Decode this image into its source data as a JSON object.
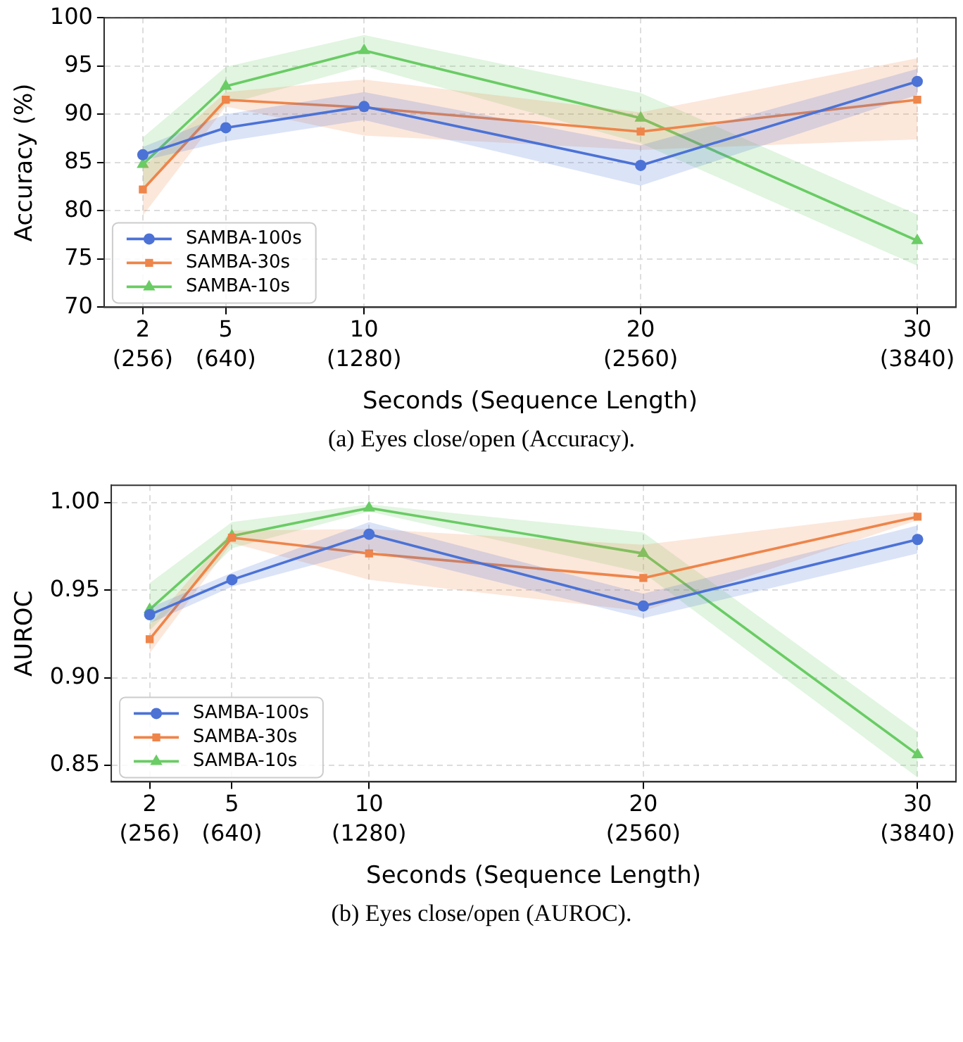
{
  "chart_data": [
    {
      "type": "line",
      "title": "(a) Eyes close/open (Accuracy).",
      "xlabel": "Seconds (Sequence Length)",
      "ylabel": "Accuracy (%)",
      "x": [
        2,
        5,
        10,
        20,
        30
      ],
      "xlim": [
        0.6,
        31.4
      ],
      "xticks": [
        2,
        5,
        10,
        20,
        30
      ],
      "x2lim": [
        76.8,
        4019.2
      ],
      "x2ticks": [
        {
          "value": 256,
          "label": "(256)"
        },
        {
          "value": 640,
          "label": "(640)"
        },
        {
          "value": 1280,
          "label": "(1280)"
        },
        {
          "value": 2560,
          "label": "(2560)"
        },
        {
          "value": 3840,
          "label": "(3840)"
        }
      ],
      "ylim": [
        70,
        100
      ],
      "yticks": [
        70,
        75,
        80,
        85,
        90,
        95,
        100
      ],
      "grid": true,
      "legend": "bottom left",
      "series": [
        {
          "name": "SAMBA-100s",
          "color": "#4c72d6",
          "marker": "circle",
          "values": [
            85.8,
            88.6,
            90.8,
            84.7,
            93.4
          ],
          "lower": [
            85.2,
            87.2,
            89.4,
            82.6,
            92.0
          ],
          "upper": [
            86.6,
            90.0,
            92.3,
            86.8,
            94.7
          ]
        },
        {
          "name": "SAMBA-30s",
          "color": "#ee854a",
          "marker": "square",
          "values": [
            82.2,
            91.5,
            90.7,
            88.2,
            91.5
          ],
          "lower": [
            79.5,
            90.8,
            87.8,
            86.3,
            87.4
          ],
          "upper": [
            84.5,
            92.3,
            93.6,
            90.2,
            95.8
          ]
        },
        {
          "name": "SAMBA-10s",
          "color": "#6acc64",
          "marker": "triangle",
          "values": [
            84.8,
            92.9,
            96.6,
            89.6,
            76.9
          ],
          "lower": [
            82.3,
            91.0,
            95.0,
            87.0,
            74.3
          ],
          "upper": [
            87.6,
            94.9,
            98.2,
            92.2,
            79.6
          ]
        }
      ]
    },
    {
      "type": "line",
      "title": "(b) Eyes close/open (AUROC).",
      "xlabel": "Seconds (Sequence Length)",
      "ylabel": "AUROC",
      "x": [
        2,
        5,
        10,
        20,
        30
      ],
      "xlim": [
        0.6,
        31.4
      ],
      "xticks": [
        2,
        5,
        10,
        20,
        30
      ],
      "x2lim": [
        76.8,
        4019.2
      ],
      "x2ticks": [
        {
          "value": 256,
          "label": "(256)"
        },
        {
          "value": 640,
          "label": "(640)"
        },
        {
          "value": 1280,
          "label": "(1280)"
        },
        {
          "value": 2560,
          "label": "(2560)"
        },
        {
          "value": 3840,
          "label": "(3840)"
        }
      ],
      "ylim": [
        0.8405,
        1.01
      ],
      "yticks": [
        {
          "value": 0.85,
          "label": "0.85"
        },
        {
          "value": 0.9,
          "label": "0.90"
        },
        {
          "value": 0.95,
          "label": "0.95"
        },
        {
          "value": 1,
          "label": "1.00"
        }
      ],
      "grid": true,
      "legend": "bottom left",
      "series": [
        {
          "name": "SAMBA-100s",
          "color": "#4c72d6",
          "marker": "circle",
          "values": [
            0.936,
            0.956,
            0.982,
            0.941,
            0.979
          ],
          "lower": [
            0.931,
            0.952,
            0.973,
            0.934,
            0.971
          ],
          "upper": [
            0.94,
            0.96,
            0.989,
            0.948,
            0.987
          ]
        },
        {
          "name": "SAMBA-30s",
          "color": "#ee854a",
          "marker": "square",
          "values": [
            0.922,
            0.98,
            0.971,
            0.957,
            0.992
          ],
          "lower": [
            0.914,
            0.977,
            0.956,
            0.938,
            0.99
          ],
          "upper": [
            0.93,
            0.984,
            0.985,
            0.976,
            0.995
          ]
        },
        {
          "name": "SAMBA-10s",
          "color": "#6acc64",
          "marker": "triangle",
          "values": [
            0.939,
            0.981,
            0.997,
            0.971,
            0.856
          ],
          "lower": [
            0.927,
            0.974,
            0.995,
            0.96,
            0.843
          ],
          "upper": [
            0.954,
            0.989,
            0.999,
            0.983,
            0.869
          ]
        }
      ]
    }
  ]
}
